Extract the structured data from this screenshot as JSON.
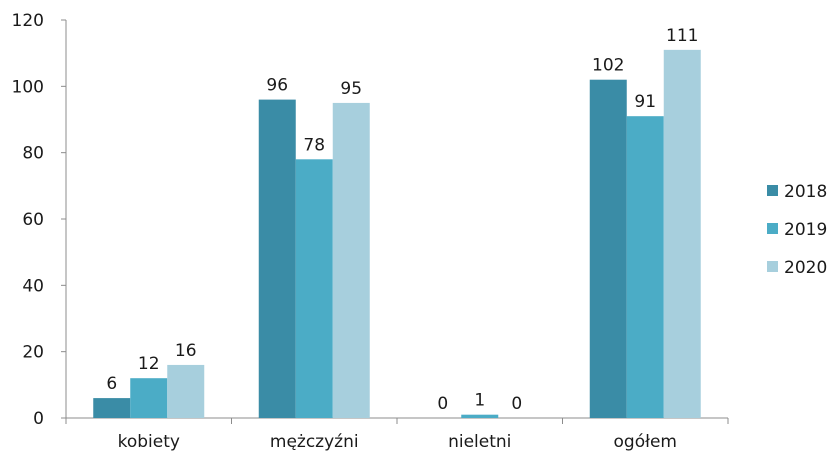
{
  "chart_data": {
    "type": "bar",
    "categories": [
      "kobiety",
      "mężczyźni",
      "nieletni",
      "ogółem"
    ],
    "series": [
      {
        "name": "2018",
        "values": [
          6,
          96,
          0,
          102
        ],
        "color": "#3a8ca6"
      },
      {
        "name": "2019",
        "values": [
          12,
          78,
          1,
          91
        ],
        "color": "#4bacc6"
      },
      {
        "name": "2020",
        "values": [
          16,
          95,
          0,
          111
        ],
        "color": "#a7cfdd"
      }
    ],
    "yticks": [
      "0",
      "20",
      "40",
      "60",
      "80",
      "100",
      "120"
    ],
    "ylim": [
      0,
      120
    ],
    "grid": false,
    "legend_position": "right",
    "data_labels": true
  }
}
